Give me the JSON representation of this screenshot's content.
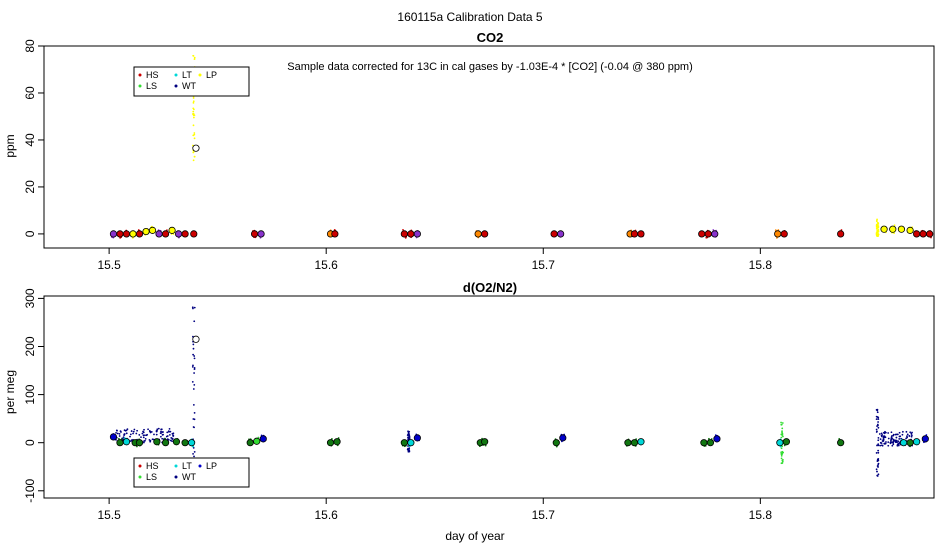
{
  "figure": {
    "title": "160115a   Calibration Data 5",
    "xlabel": "day of year"
  },
  "colors": {
    "HS": "#cc0000",
    "LS": "#33dd33",
    "LT": "#00d8d8",
    "WT": "#000080",
    "LP": "#ffff00",
    "LP_o2": "#0000cc",
    "purple": "#8833cc",
    "orange": "#ff8800",
    "darkgreen": "#117711"
  },
  "chart_data": [
    {
      "type": "scatter",
      "title": "CO2",
      "annotation": "Sample data corrected for 13C in cal gases by -1.03E-4 * [CO2] (-0.04 @ 380 ppm)",
      "ylabel": "ppm",
      "xlim": [
        15.47,
        15.88
      ],
      "ylim": [
        -6,
        80
      ],
      "xticks": [
        15.5,
        15.6,
        15.7,
        15.8
      ],
      "xtick_labels": [
        "15.5",
        "15.6",
        "15.7",
        "15.8"
      ],
      "yticks": [
        0,
        20,
        40,
        60,
        80
      ],
      "ytick_labels": [
        "0",
        "20",
        "40",
        "60",
        "80"
      ],
      "legend": {
        "placement": "top-left",
        "entries": [
          {
            "label": "HS",
            "color": "#cc0000"
          },
          {
            "label": "LT",
            "color": "#00d8d8"
          },
          {
            "label": "LP",
            "color": "#ffff00"
          },
          {
            "label": "LS",
            "color": "#33dd33"
          },
          {
            "label": "WT",
            "color": "#000080"
          }
        ]
      },
      "points": [
        {
          "x": 15.502,
          "y": 0,
          "c": "#8833cc"
        },
        {
          "x": 15.505,
          "y": 0,
          "c": "#cc0000"
        },
        {
          "x": 15.508,
          "y": 0,
          "c": "#cc0000"
        },
        {
          "x": 15.511,
          "y": 0,
          "c": "#ffff00"
        },
        {
          "x": 15.514,
          "y": 0,
          "c": "#cc0000"
        },
        {
          "x": 15.517,
          "y": 1,
          "c": "#ffff00"
        },
        {
          "x": 15.52,
          "y": 1.5,
          "c": "#ffff00"
        },
        {
          "x": 15.523,
          "y": 0,
          "c": "#8833cc"
        },
        {
          "x": 15.526,
          "y": 0,
          "c": "#cc0000"
        },
        {
          "x": 15.529,
          "y": 1.5,
          "c": "#ffff00"
        },
        {
          "x": 15.532,
          "y": 0,
          "c": "#8833cc"
        },
        {
          "x": 15.535,
          "y": 0,
          "c": "#cc0000"
        },
        {
          "x": 15.539,
          "y": 0,
          "c": "#cc0000"
        },
        {
          "x": 15.54,
          "y": 36.5,
          "c": "none"
        },
        {
          "x": 15.567,
          "y": 0,
          "c": "#cc0000"
        },
        {
          "x": 15.57,
          "y": 0,
          "c": "#8833cc"
        },
        {
          "x": 15.602,
          "y": 0,
          "c": "#ff8800"
        },
        {
          "x": 15.604,
          "y": 0,
          "c": "#cc0000"
        },
        {
          "x": 15.636,
          "y": 0,
          "c": "#cc0000"
        },
        {
          "x": 15.639,
          "y": 0,
          "c": "#cc0000"
        },
        {
          "x": 15.642,
          "y": 0,
          "c": "#8833cc"
        },
        {
          "x": 15.67,
          "y": 0,
          "c": "#ff8800"
        },
        {
          "x": 15.673,
          "y": 0,
          "c": "#cc0000"
        },
        {
          "x": 15.705,
          "y": 0,
          "c": "#cc0000"
        },
        {
          "x": 15.708,
          "y": 0,
          "c": "#8833cc"
        },
        {
          "x": 15.74,
          "y": 0,
          "c": "#ff8800"
        },
        {
          "x": 15.742,
          "y": 0,
          "c": "#cc0000"
        },
        {
          "x": 15.745,
          "y": 0,
          "c": "#cc0000"
        },
        {
          "x": 15.773,
          "y": 0,
          "c": "#cc0000"
        },
        {
          "x": 15.776,
          "y": 0,
          "c": "#cc0000"
        },
        {
          "x": 15.779,
          "y": 0,
          "c": "#8833cc"
        },
        {
          "x": 15.808,
          "y": 0,
          "c": "#ff8800"
        },
        {
          "x": 15.811,
          "y": 0,
          "c": "#cc0000"
        },
        {
          "x": 15.837,
          "y": 0,
          "c": "#cc0000"
        },
        {
          "x": 15.857,
          "y": 2,
          "c": "#ffff00"
        },
        {
          "x": 15.861,
          "y": 2,
          "c": "#ffff00"
        },
        {
          "x": 15.865,
          "y": 2,
          "c": "#ffff00"
        },
        {
          "x": 15.869,
          "y": 1.5,
          "c": "#ffff00"
        },
        {
          "x": 15.872,
          "y": 0,
          "c": "#cc0000"
        },
        {
          "x": 15.875,
          "y": 0,
          "c": "#cc0000"
        },
        {
          "x": 15.878,
          "y": 0,
          "c": "#cc0000"
        }
      ],
      "spikes": [
        {
          "x": 15.539,
          "y0": 29,
          "y1": 78,
          "c": "#ffff00"
        },
        {
          "x": 15.854,
          "y0": -1,
          "y1": 7,
          "c": "#ffff00"
        }
      ]
    },
    {
      "type": "scatter",
      "title": "d(O2/N2)",
      "ylabel": "per meg",
      "xlim": [
        15.47,
        15.88
      ],
      "ylim": [
        -115,
        305
      ],
      "xticks": [
        15.5,
        15.6,
        15.7,
        15.8
      ],
      "xtick_labels": [
        "15.5",
        "15.6",
        "15.7",
        "15.8"
      ],
      "yticks": [
        -100,
        0,
        100,
        200,
        300
      ],
      "ytick_labels": [
        "-100",
        "0",
        "100",
        "200",
        "300"
      ],
      "legend": {
        "placement": "bottom-left",
        "entries": [
          {
            "label": "HS",
            "color": "#cc0000"
          },
          {
            "label": "LT",
            "color": "#00d8d8"
          },
          {
            "label": "LP",
            "color": "#0000cc"
          },
          {
            "label": "LS",
            "color": "#33dd33"
          },
          {
            "label": "WT",
            "color": "#000080"
          }
        ]
      },
      "points": [
        {
          "x": 15.502,
          "y": 12,
          "c": "#0000cc"
        },
        {
          "x": 15.505,
          "y": 0,
          "c": "#117711"
        },
        {
          "x": 15.508,
          "y": 2,
          "c": "#00d8d8"
        },
        {
          "x": 15.512,
          "y": 0,
          "c": "#117711"
        },
        {
          "x": 15.514,
          "y": 0,
          "c": "#117711"
        },
        {
          "x": 15.522,
          "y": 2,
          "c": "#117711"
        },
        {
          "x": 15.526,
          "y": 0,
          "c": "#117711"
        },
        {
          "x": 15.531,
          "y": 2,
          "c": "#117711"
        },
        {
          "x": 15.535,
          "y": 0,
          "c": "#117711"
        },
        {
          "x": 15.538,
          "y": 0,
          "c": "#00d8d8"
        },
        {
          "x": 15.54,
          "y": 215,
          "c": "none"
        },
        {
          "x": 15.565,
          "y": 0,
          "c": "#117711"
        },
        {
          "x": 15.568,
          "y": 3,
          "c": "#33dd33"
        },
        {
          "x": 15.571,
          "y": 8,
          "c": "#0000cc"
        },
        {
          "x": 15.602,
          "y": 0,
          "c": "#117711"
        },
        {
          "x": 15.605,
          "y": 2,
          "c": "#117711"
        },
        {
          "x": 15.636,
          "y": 0,
          "c": "#117711"
        },
        {
          "x": 15.639,
          "y": 0,
          "c": "#00d8d8"
        },
        {
          "x": 15.642,
          "y": 10,
          "c": "#0000cc"
        },
        {
          "x": 15.671,
          "y": 0,
          "c": "#117711"
        },
        {
          "x": 15.673,
          "y": 2,
          "c": "#117711"
        },
        {
          "x": 15.706,
          "y": 0,
          "c": "#117711"
        },
        {
          "x": 15.709,
          "y": 10,
          "c": "#0000cc"
        },
        {
          "x": 15.739,
          "y": 0,
          "c": "#117711"
        },
        {
          "x": 15.742,
          "y": 0,
          "c": "#117711"
        },
        {
          "x": 15.745,
          "y": 2,
          "c": "#00d8d8"
        },
        {
          "x": 15.774,
          "y": 0,
          "c": "#117711"
        },
        {
          "x": 15.777,
          "y": 0,
          "c": "#117711"
        },
        {
          "x": 15.78,
          "y": 8,
          "c": "#0000cc"
        },
        {
          "x": 15.809,
          "y": 0,
          "c": "#00d8d8"
        },
        {
          "x": 15.812,
          "y": 2,
          "c": "#117711"
        },
        {
          "x": 15.837,
          "y": 0,
          "c": "#117711"
        },
        {
          "x": 15.866,
          "y": 0,
          "c": "#00d8d8"
        },
        {
          "x": 15.869,
          "y": 0,
          "c": "#117711"
        },
        {
          "x": 15.872,
          "y": 2,
          "c": "#00d8d8"
        },
        {
          "x": 15.876,
          "y": 8,
          "c": "#0000cc"
        }
      ],
      "spikes": [
        {
          "x": 15.539,
          "y0": -110,
          "y1": 290,
          "c": "#000080"
        },
        {
          "x": 15.638,
          "y0": -20,
          "y1": 25,
          "c": "#000080"
        },
        {
          "x": 15.81,
          "y0": -45,
          "y1": 45,
          "c": "#33dd33"
        },
        {
          "x": 15.854,
          "y0": -70,
          "y1": 70,
          "c": "#000080"
        }
      ],
      "clusters": [
        {
          "x0": 15.503,
          "x1": 15.53,
          "yc": 15,
          "c": "#000080"
        },
        {
          "x0": 15.855,
          "x1": 15.87,
          "yc": 8,
          "c": "#000080"
        }
      ]
    }
  ]
}
